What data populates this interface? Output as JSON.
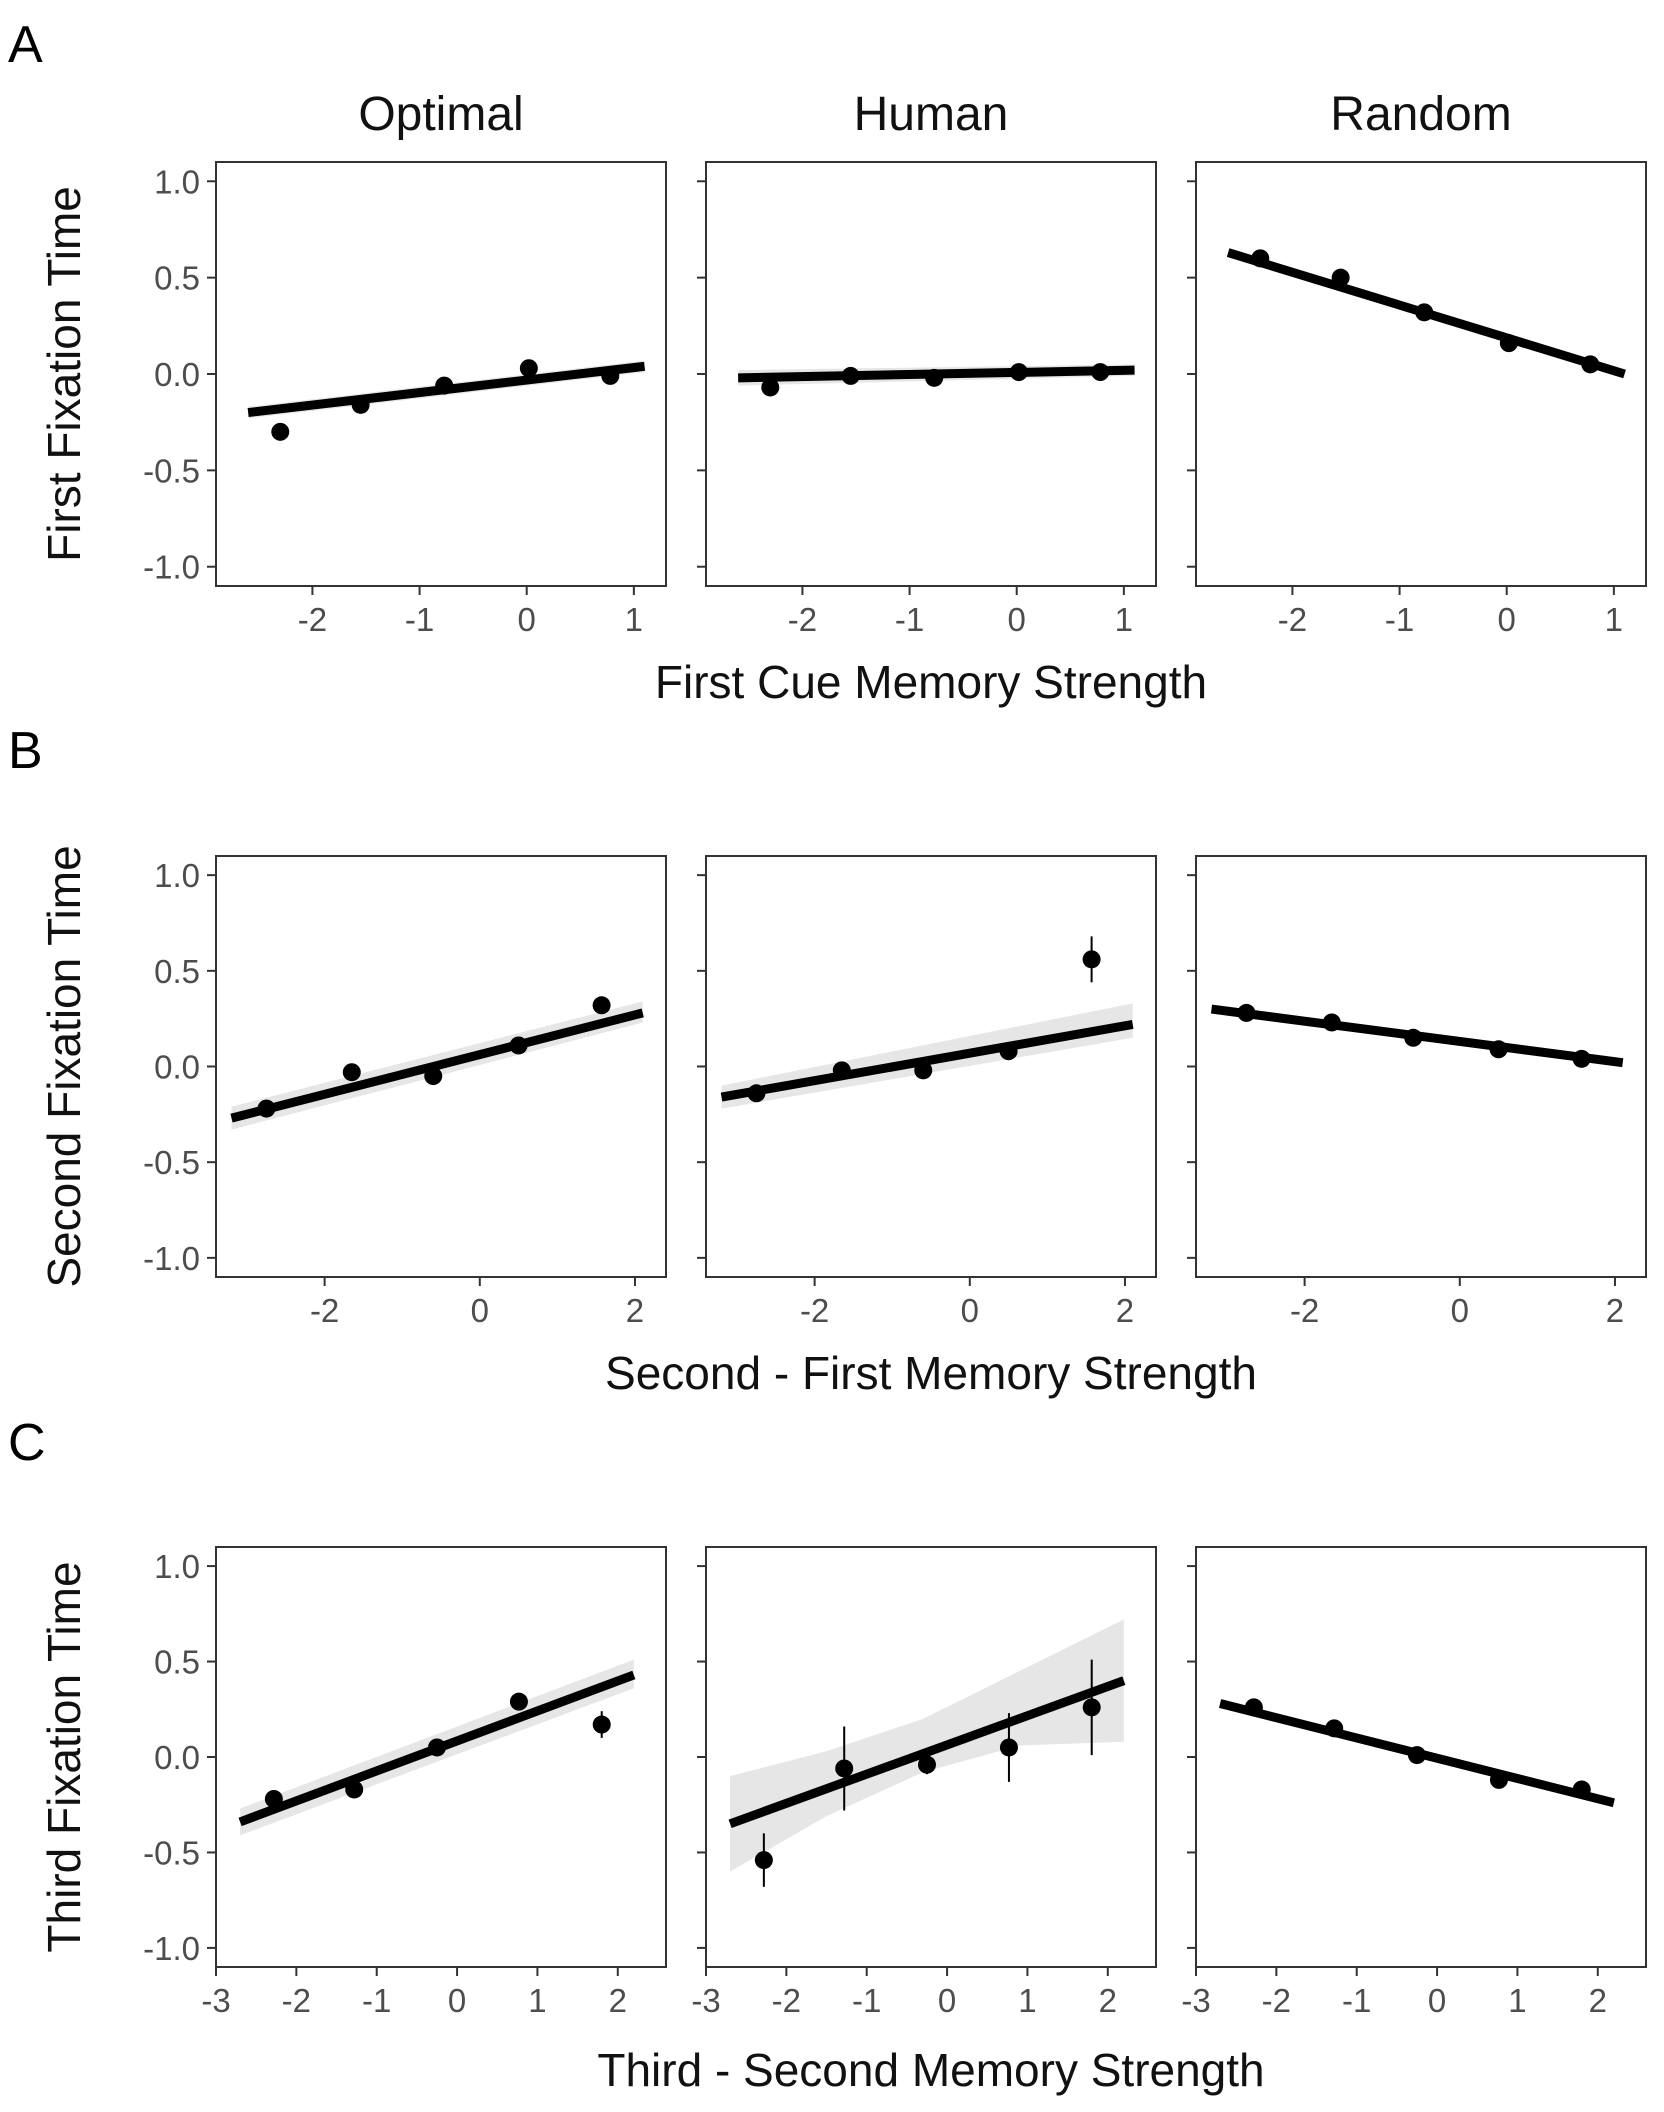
{
  "figure": {
    "columns": [
      "Optimal",
      "Human",
      "Random"
    ]
  },
  "chart_data": [
    {
      "type": "scatter",
      "panel_label": "A",
      "ylabel": "First Fixation Time",
      "xlabel": "First Cue Memory Strength",
      "xlim": [
        -2.9,
        1.3
      ],
      "ylim": [
        -1.1,
        1.1
      ],
      "xticks": [
        -2,
        -1,
        0,
        1
      ],
      "yticks": [
        -1.0,
        -0.5,
        0.0,
        0.5,
        1.0
      ],
      "grid": false,
      "facets": [
        {
          "name": "Optimal",
          "points": [
            {
              "x": -2.3,
              "y": -0.3,
              "err": 0.02
            },
            {
              "x": -1.55,
              "y": -0.16,
              "err": 0.02
            },
            {
              "x": -0.77,
              "y": -0.06,
              "err": 0.02
            },
            {
              "x": 0.02,
              "y": 0.03,
              "err": 0.02
            },
            {
              "x": 0.78,
              "y": -0.01,
              "err": 0.02
            }
          ],
          "fit": {
            "x": [
              -2.6,
              1.1
            ],
            "y": [
              -0.2,
              0.04
            ]
          },
          "band": [
            {
              "x": -2.6,
              "lo": -0.23,
              "hi": -0.17
            },
            {
              "x": 1.1,
              "lo": 0.01,
              "hi": 0.07
            }
          ]
        },
        {
          "name": "Human",
          "points": [
            {
              "x": -2.3,
              "y": -0.07,
              "err": 0.04
            },
            {
              "x": -1.55,
              "y": -0.01,
              "err": 0.02
            },
            {
              "x": -0.77,
              "y": -0.02,
              "err": 0.02
            },
            {
              "x": 0.02,
              "y": 0.01,
              "err": 0.02
            },
            {
              "x": 0.78,
              "y": 0.01,
              "err": 0.02
            }
          ],
          "fit": {
            "x": [
              -2.6,
              1.1
            ],
            "y": [
              -0.02,
              0.02
            ]
          },
          "band": [
            {
              "x": -2.6,
              "lo": -0.06,
              "hi": 0.02
            },
            {
              "x": 1.1,
              "lo": -0.01,
              "hi": 0.05
            }
          ]
        },
        {
          "name": "Random",
          "points": [
            {
              "x": -2.3,
              "y": 0.6,
              "err": 0.02
            },
            {
              "x": -1.55,
              "y": 0.5,
              "err": 0.02
            },
            {
              "x": -0.77,
              "y": 0.32,
              "err": 0.02
            },
            {
              "x": 0.02,
              "y": 0.16,
              "err": 0.02
            },
            {
              "x": 0.78,
              "y": 0.05,
              "err": 0.02
            }
          ],
          "fit": {
            "x": [
              -2.6,
              1.1
            ],
            "y": [
              0.63,
              0.0
            ]
          },
          "band": [
            {
              "x": -2.6,
              "lo": 0.61,
              "hi": 0.65
            },
            {
              "x": 1.1,
              "lo": -0.02,
              "hi": 0.02
            }
          ]
        }
      ]
    },
    {
      "type": "scatter",
      "panel_label": "B",
      "ylabel": "Second Fixation Time",
      "xlabel": "Second - First Memory Strength",
      "xlim": [
        -3.4,
        2.4
      ],
      "ylim": [
        -1.1,
        1.1
      ],
      "xticks": [
        -2,
        0,
        2
      ],
      "yticks": [
        -1.0,
        -0.5,
        0.0,
        0.5,
        1.0
      ],
      "grid": false,
      "facets": [
        {
          "name": "Optimal",
          "points": [
            {
              "x": -2.75,
              "y": -0.22,
              "err": 0.02
            },
            {
              "x": -1.65,
              "y": -0.03,
              "err": 0.02
            },
            {
              "x": -0.6,
              "y": -0.05,
              "err": 0.02
            },
            {
              "x": 0.5,
              "y": 0.11,
              "err": 0.02
            },
            {
              "x": 1.57,
              "y": 0.32,
              "err": 0.02
            }
          ],
          "fit": {
            "x": [
              -3.2,
              2.1
            ],
            "y": [
              -0.27,
              0.28
            ]
          },
          "band": [
            {
              "x": -3.2,
              "lo": -0.33,
              "hi": -0.21
            },
            {
              "x": 2.1,
              "lo": 0.23,
              "hi": 0.34
            }
          ]
        },
        {
          "name": "Human",
          "points": [
            {
              "x": -2.75,
              "y": -0.14,
              "err": 0.02
            },
            {
              "x": -1.65,
              "y": -0.02,
              "err": 0.02
            },
            {
              "x": -0.6,
              "y": -0.02,
              "err": 0.02
            },
            {
              "x": 0.5,
              "y": 0.08,
              "err": 0.02
            },
            {
              "x": 1.57,
              "y": 0.56,
              "err": 0.12
            }
          ],
          "fit": {
            "x": [
              -3.2,
              2.1
            ],
            "y": [
              -0.16,
              0.22
            ]
          },
          "band": [
            {
              "x": -3.2,
              "lo": -0.22,
              "hi": -0.1
            },
            {
              "x": 2.1,
              "lo": 0.15,
              "hi": 0.33
            }
          ]
        },
        {
          "name": "Random",
          "points": [
            {
              "x": -2.75,
              "y": 0.28,
              "err": 0.02
            },
            {
              "x": -1.65,
              "y": 0.23,
              "err": 0.02
            },
            {
              "x": -0.6,
              "y": 0.15,
              "err": 0.02
            },
            {
              "x": 0.5,
              "y": 0.09,
              "err": 0.02
            },
            {
              "x": 1.57,
              "y": 0.04,
              "err": 0.02
            }
          ],
          "fit": {
            "x": [
              -3.2,
              2.1
            ],
            "y": [
              0.3,
              0.02
            ]
          },
          "band": [
            {
              "x": -3.2,
              "lo": 0.28,
              "hi": 0.32
            },
            {
              "x": 2.1,
              "lo": 0.0,
              "hi": 0.04
            }
          ]
        }
      ]
    },
    {
      "type": "scatter",
      "panel_label": "C",
      "ylabel": "Third Fixation Time",
      "xlabel": "Third - Second Memory Strength",
      "xlim": [
        -3.0,
        2.6
      ],
      "ylim": [
        -1.1,
        1.1
      ],
      "xticks": [
        -3,
        -2,
        -1,
        0,
        1,
        2
      ],
      "yticks": [
        -1.0,
        -0.5,
        0.0,
        0.5,
        1.0
      ],
      "grid": false,
      "facets": [
        {
          "name": "Optimal",
          "points": [
            {
              "x": -2.28,
              "y": -0.22,
              "err": 0.04
            },
            {
              "x": -1.28,
              "y": -0.17,
              "err": 0.02
            },
            {
              "x": -0.25,
              "y": 0.05,
              "err": 0.02
            },
            {
              "x": 0.77,
              "y": 0.29,
              "err": 0.03
            },
            {
              "x": 1.8,
              "y": 0.17,
              "err": 0.07
            }
          ],
          "fit": {
            "x": [
              -2.7,
              2.2
            ],
            "y": [
              -0.34,
              0.43
            ]
          },
          "band": [
            {
              "x": -2.7,
              "lo": -0.41,
              "hi": -0.27
            },
            {
              "x": 2.2,
              "lo": 0.36,
              "hi": 0.51
            }
          ]
        },
        {
          "name": "Human",
          "points": [
            {
              "x": -2.28,
              "y": -0.54,
              "err": 0.14
            },
            {
              "x": -1.28,
              "y": -0.06,
              "err": 0.22
            },
            {
              "x": -0.25,
              "y": -0.04,
              "err": 0.05
            },
            {
              "x": 0.77,
              "y": 0.05,
              "err": 0.18
            },
            {
              "x": 1.8,
              "y": 0.26,
              "err": 0.25
            }
          ],
          "fit": {
            "x": [
              -2.7,
              2.2
            ],
            "y": [
              -0.35,
              0.4
            ]
          },
          "band": [
            {
              "x": -2.7,
              "lo": -0.6,
              "hi": -0.1
            },
            {
              "x": -1.5,
              "lo": -0.31,
              "hi": 0.03
            },
            {
              "x": -0.3,
              "lo": -0.08,
              "hi": 0.2
            },
            {
              "x": 0.9,
              "lo": 0.06,
              "hi": 0.45
            },
            {
              "x": 2.2,
              "lo": 0.08,
              "hi": 0.72
            }
          ]
        },
        {
          "name": "Random",
          "points": [
            {
              "x": -2.28,
              "y": 0.26,
              "err": 0.02
            },
            {
              "x": -1.28,
              "y": 0.15,
              "err": 0.02
            },
            {
              "x": -0.25,
              "y": 0.01,
              "err": 0.02
            },
            {
              "x": 0.77,
              "y": -0.12,
              "err": 0.02
            },
            {
              "x": 1.8,
              "y": -0.17,
              "err": 0.02
            }
          ],
          "fit": {
            "x": [
              -2.7,
              2.2
            ],
            "y": [
              0.28,
              -0.24
            ]
          },
          "band": [
            {
              "x": -2.7,
              "lo": 0.26,
              "hi": 0.3
            },
            {
              "x": 2.2,
              "lo": -0.26,
              "hi": -0.22
            }
          ]
        }
      ]
    }
  ]
}
